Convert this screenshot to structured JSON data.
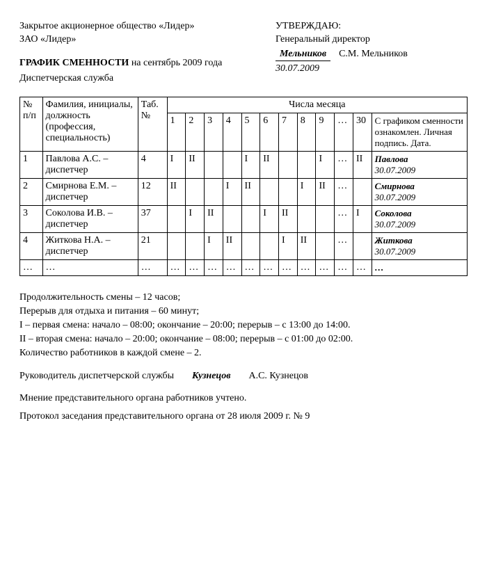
{
  "header": {
    "company_full": "Закрытое акционерное общество «Лидер»",
    "company_short": "ЗАО «Лидер»",
    "title_bold": "ГРАФИК СМЕННОСТИ",
    "title_rest": " на сентябрь 2009 года",
    "department": "Диспетчерская служба",
    "approve": "УТВЕРЖДАЮ:",
    "director_title": "Генеральный директор",
    "director_sig": "Мельников",
    "director_name": "С.М. Мельников",
    "approve_date": "30.07.2009"
  },
  "table": {
    "h_num": "№ п/п",
    "h_name": "Фамилия, инициалы, должность (профессия, специальность)",
    "h_tab": "Таб. №",
    "h_days": "Числа месяца",
    "h_sign": "С графиком сменности ознакомлен. Личная подпись. Дата.",
    "days": [
      "1",
      "2",
      "3",
      "4",
      "5",
      "6",
      "7",
      "8",
      "9",
      "…",
      "30"
    ],
    "rows": [
      {
        "num": "1",
        "name": "Павлова А.С. – диспетчер",
        "tab": "4",
        "cells": [
          "I",
          "II",
          "",
          "",
          "I",
          "II",
          "",
          "",
          "I",
          "…",
          "II"
        ],
        "sig_name": "Павлова",
        "sig_date": "30.07.2009"
      },
      {
        "num": "2",
        "name": "Смирнова Е.М. – диспетчер",
        "tab": "12",
        "cells": [
          "II",
          "",
          "",
          "I",
          "II",
          "",
          "",
          "I",
          "II",
          "…",
          ""
        ],
        "sig_name": "Смирнова",
        "sig_date": "30.07.2009"
      },
      {
        "num": "3",
        "name": "Соколова И.В. – диспетчер",
        "tab": "37",
        "cells": [
          "",
          "I",
          "II",
          "",
          "",
          "I",
          "II",
          "",
          "",
          "…",
          "I"
        ],
        "sig_name": "Соколова",
        "sig_date": "30.07.2009"
      },
      {
        "num": "4",
        "name": "Житкова Н.А. – диспетчер",
        "tab": "21",
        "cells": [
          "",
          "",
          "I",
          "II",
          "",
          "",
          "I",
          "II",
          "",
          "…",
          ""
        ],
        "sig_name": "Житкова",
        "sig_date": "30.07.2009"
      },
      {
        "num": "…",
        "name": "…",
        "tab": "…",
        "cells": [
          "…",
          "…",
          "…",
          "…",
          "…",
          "…",
          "…",
          "…",
          "…",
          "…",
          "…"
        ],
        "sig_name": "…",
        "sig_date": ""
      }
    ]
  },
  "notes": {
    "duration": "Продолжительность смены – 12 часов;",
    "break": "Перерыв для отдыха и питания – 60 минут;",
    "shift1": "I – первая смена: начало – 08:00; окончание – 20:00; перерыв – с 13:00 до 14:00.",
    "shift2": "II – вторая смена: начало – 20:00; окончание – 08:00; перерыв – с 01:00 до 02:00.",
    "count": "Количество работников в каждой смене – 2."
  },
  "manager": {
    "title": "Руководитель диспетчерской службы",
    "sig": "Кузнецов",
    "name": "А.С. Кузнецов"
  },
  "footer": {
    "opinion": "Мнение представительного органа работников учтено.",
    "protocol": "Протокол заседания представительного органа от 28 июля 2009 г. № 9"
  }
}
